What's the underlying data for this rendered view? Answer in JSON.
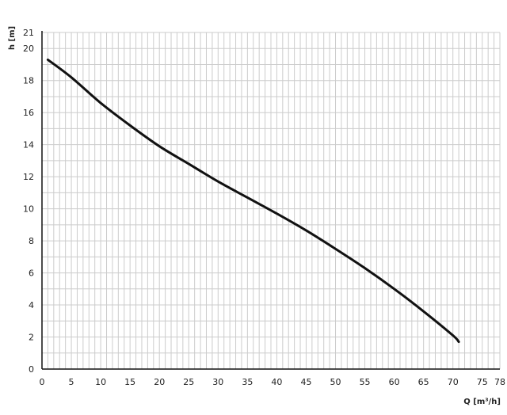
{
  "chart_data": {
    "type": "line",
    "title": "",
    "xlabel": "Q [m³/h]",
    "ylabel": "h [m]",
    "xlim": [
      0,
      78
    ],
    "ylim": [
      0,
      21
    ],
    "xticks": [
      0,
      5,
      10,
      15,
      20,
      25,
      30,
      35,
      40,
      45,
      50,
      55,
      60,
      65,
      70,
      75,
      78
    ],
    "yticks": [
      0,
      2,
      4,
      6,
      8,
      10,
      12,
      14,
      16,
      18,
      20,
      21
    ],
    "grid": true,
    "grid_minor_step": 1,
    "colors": {
      "line": "#111111",
      "grid": "#cccccc",
      "axis": "#111111"
    },
    "series": [
      {
        "x": [
          1,
          5,
          10,
          15,
          20,
          25,
          30,
          35,
          40,
          45,
          50,
          55,
          60,
          65,
          70,
          71
        ],
        "y": [
          19.3,
          18.2,
          16.6,
          15.2,
          13.9,
          12.8,
          11.7,
          10.7,
          9.7,
          8.65,
          7.5,
          6.3,
          5.0,
          3.6,
          2.1,
          1.7
        ]
      }
    ]
  }
}
